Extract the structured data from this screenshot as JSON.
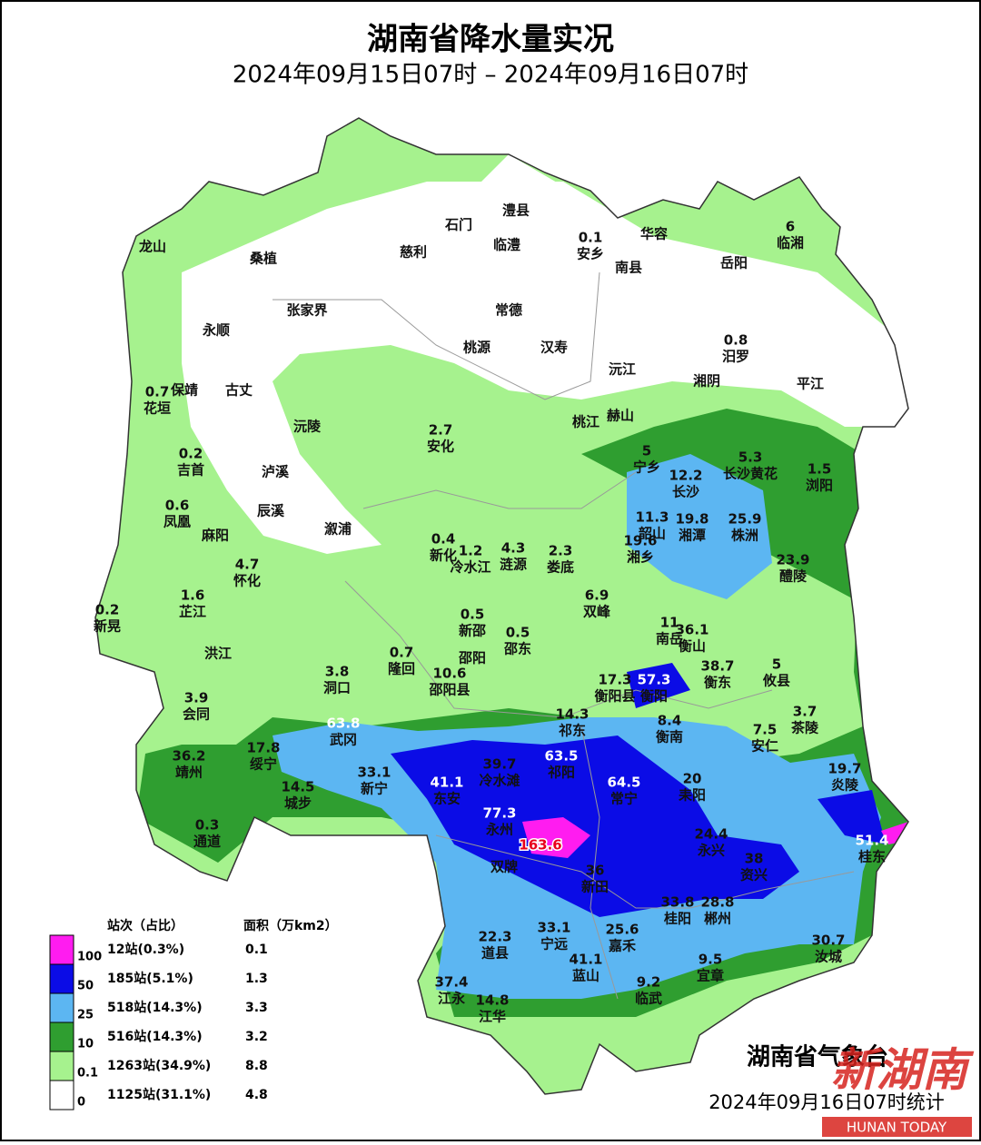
{
  "header": {
    "title": "湖南省降水量实况",
    "subtitle": "2024年09月15日07时 – 2024年09月16日07时"
  },
  "places": [
    {
      "name": "龙山"
    },
    {
      "name": "桑植"
    },
    {
      "name": "慈利"
    },
    {
      "name": "石门"
    },
    {
      "name": "澧县"
    },
    {
      "name": "临澧"
    },
    {
      "name": "安乡",
      "value": 0.1
    },
    {
      "name": "华容"
    },
    {
      "name": "南县"
    },
    {
      "name": "岳阳"
    },
    {
      "name": "临湘",
      "value": 6
    },
    {
      "name": "张家界"
    },
    {
      "name": "常德"
    },
    {
      "name": "永顺"
    },
    {
      "name": "桃源"
    },
    {
      "name": "汉寿"
    },
    {
      "name": "汨罗",
      "value": 0.8
    },
    {
      "name": "沅江"
    },
    {
      "name": "湘阴"
    },
    {
      "name": "平江"
    },
    {
      "name": "保靖"
    },
    {
      "name": "花垣",
      "value": 0.7
    },
    {
      "name": "古丈"
    },
    {
      "name": "沅陵"
    },
    {
      "name": "桃江"
    },
    {
      "name": "赫山"
    },
    {
      "name": "安化",
      "value": 2.7
    },
    {
      "name": "宁乡",
      "value": 5
    },
    {
      "name": "长沙黄花",
      "value": 5.3
    },
    {
      "name": "浏阳",
      "value": 1.5
    },
    {
      "name": "吉首",
      "value": 0.2
    },
    {
      "name": "泸溪"
    },
    {
      "name": "长沙",
      "value": 12.2
    },
    {
      "name": "凤凰",
      "value": 0.6
    },
    {
      "name": "辰溪"
    },
    {
      "name": "麻阳"
    },
    {
      "name": "溆浦"
    },
    {
      "name": "韶山",
      "value": 11.3
    },
    {
      "name": "湘潭",
      "value": 19.8
    },
    {
      "name": "株洲",
      "value": 25.9
    },
    {
      "name": "新化",
      "value": 0.4
    },
    {
      "name": "冷水江",
      "value": 1.2
    },
    {
      "name": "涟源",
      "value": 4.3
    },
    {
      "name": "娄底",
      "value": 2.3
    },
    {
      "name": "湘乡",
      "value": 19.6
    },
    {
      "name": "怀化",
      "value": 4.7
    },
    {
      "name": "醴陵",
      "value": 23.9
    },
    {
      "name": "芷江",
      "value": 1.6
    },
    {
      "name": "双峰",
      "value": 6.9
    },
    {
      "name": "新晃",
      "value": 0.2
    },
    {
      "name": "新邵",
      "value": 0.5
    },
    {
      "name": "邵东",
      "value": 0.5
    },
    {
      "name": "南岳",
      "value": 11
    },
    {
      "name": "衡山",
      "value": 36.1
    },
    {
      "name": "洪江"
    },
    {
      "name": "隆回",
      "value": 0.7
    },
    {
      "name": "邵阳"
    },
    {
      "name": "攸县",
      "value": 5
    },
    {
      "name": "衡东",
      "value": 38.7
    },
    {
      "name": "洞口",
      "value": 3.8
    },
    {
      "name": "邵阳县",
      "value": 10.6
    },
    {
      "name": "衡阳县",
      "value": 17.3
    },
    {
      "name": "衡阳",
      "value": 57.3
    },
    {
      "name": "会同",
      "value": 3.9
    },
    {
      "name": "茶陵",
      "value": 3.7
    },
    {
      "name": "祁东",
      "value": 14.3
    },
    {
      "name": "衡南",
      "value": 8.4
    },
    {
      "name": "武冈",
      "value": 63.8
    },
    {
      "name": "安仁",
      "value": 7.5
    },
    {
      "name": "靖州",
      "value": 36.2
    },
    {
      "name": "绥宁",
      "value": 17.8
    },
    {
      "name": "冷水滩",
      "value": 39.7
    },
    {
      "name": "祁阳",
      "value": 63.5
    },
    {
      "name": "炎陵",
      "value": 19.7
    },
    {
      "name": "新宁",
      "value": 33.1
    },
    {
      "name": "东安",
      "value": 41.1
    },
    {
      "name": "常宁",
      "value": 64.5
    },
    {
      "name": "耒阳",
      "value": 20
    },
    {
      "name": "城步",
      "value": 14.5
    },
    {
      "name": "永州",
      "value": 77.3
    },
    {
      "name": "通道",
      "value": 0.3
    },
    {
      "name": "双牌",
      "value": 163.6
    },
    {
      "name": "永兴",
      "value": 24.4
    },
    {
      "name": "资兴",
      "value": 38
    },
    {
      "name": "桂东",
      "value": 51.4
    },
    {
      "name": "新田",
      "value": 36
    },
    {
      "name": "道县",
      "value": 22.3
    },
    {
      "name": "宁远",
      "value": 33.1
    },
    {
      "name": "桂阳",
      "value": 33.8
    },
    {
      "name": "郴州",
      "value": 28.8
    },
    {
      "name": "嘉禾",
      "value": 25.6
    },
    {
      "name": "汝城",
      "value": 30.7
    },
    {
      "name": "宜章",
      "value": 9.5
    },
    {
      "name": "蓝山",
      "value": 41.1
    },
    {
      "name": "临武",
      "value": 9.2
    },
    {
      "name": "江永",
      "value": 37.4
    },
    {
      "name": "江华",
      "value": 14.8
    }
  ],
  "legend": {
    "stations_header": "站次（占比）",
    "area_header": "面积（万km2）",
    "thresholds": [
      100,
      50,
      25,
      10,
      0.1,
      0
    ],
    "rows": [
      {
        "stations": "12站(0.3%)",
        "area": 0.1
      },
      {
        "stations": "185站(5.1%)",
        "area": 1.3
      },
      {
        "stations": "518站(14.3%)",
        "area": 3.3
      },
      {
        "stations": "516站(14.3%)",
        "area": 3.2
      },
      {
        "stations": "1263站(34.9%)",
        "area": 8.8
      },
      {
        "stations": "1125站(31.1%)",
        "area": 4.8
      }
    ]
  },
  "footer": {
    "agency": "湖南省气象台",
    "stamp": "2024年09月16日07时统计",
    "watermark": "新湖南",
    "watermark_sub": "HUNAN TODAY"
  }
}
